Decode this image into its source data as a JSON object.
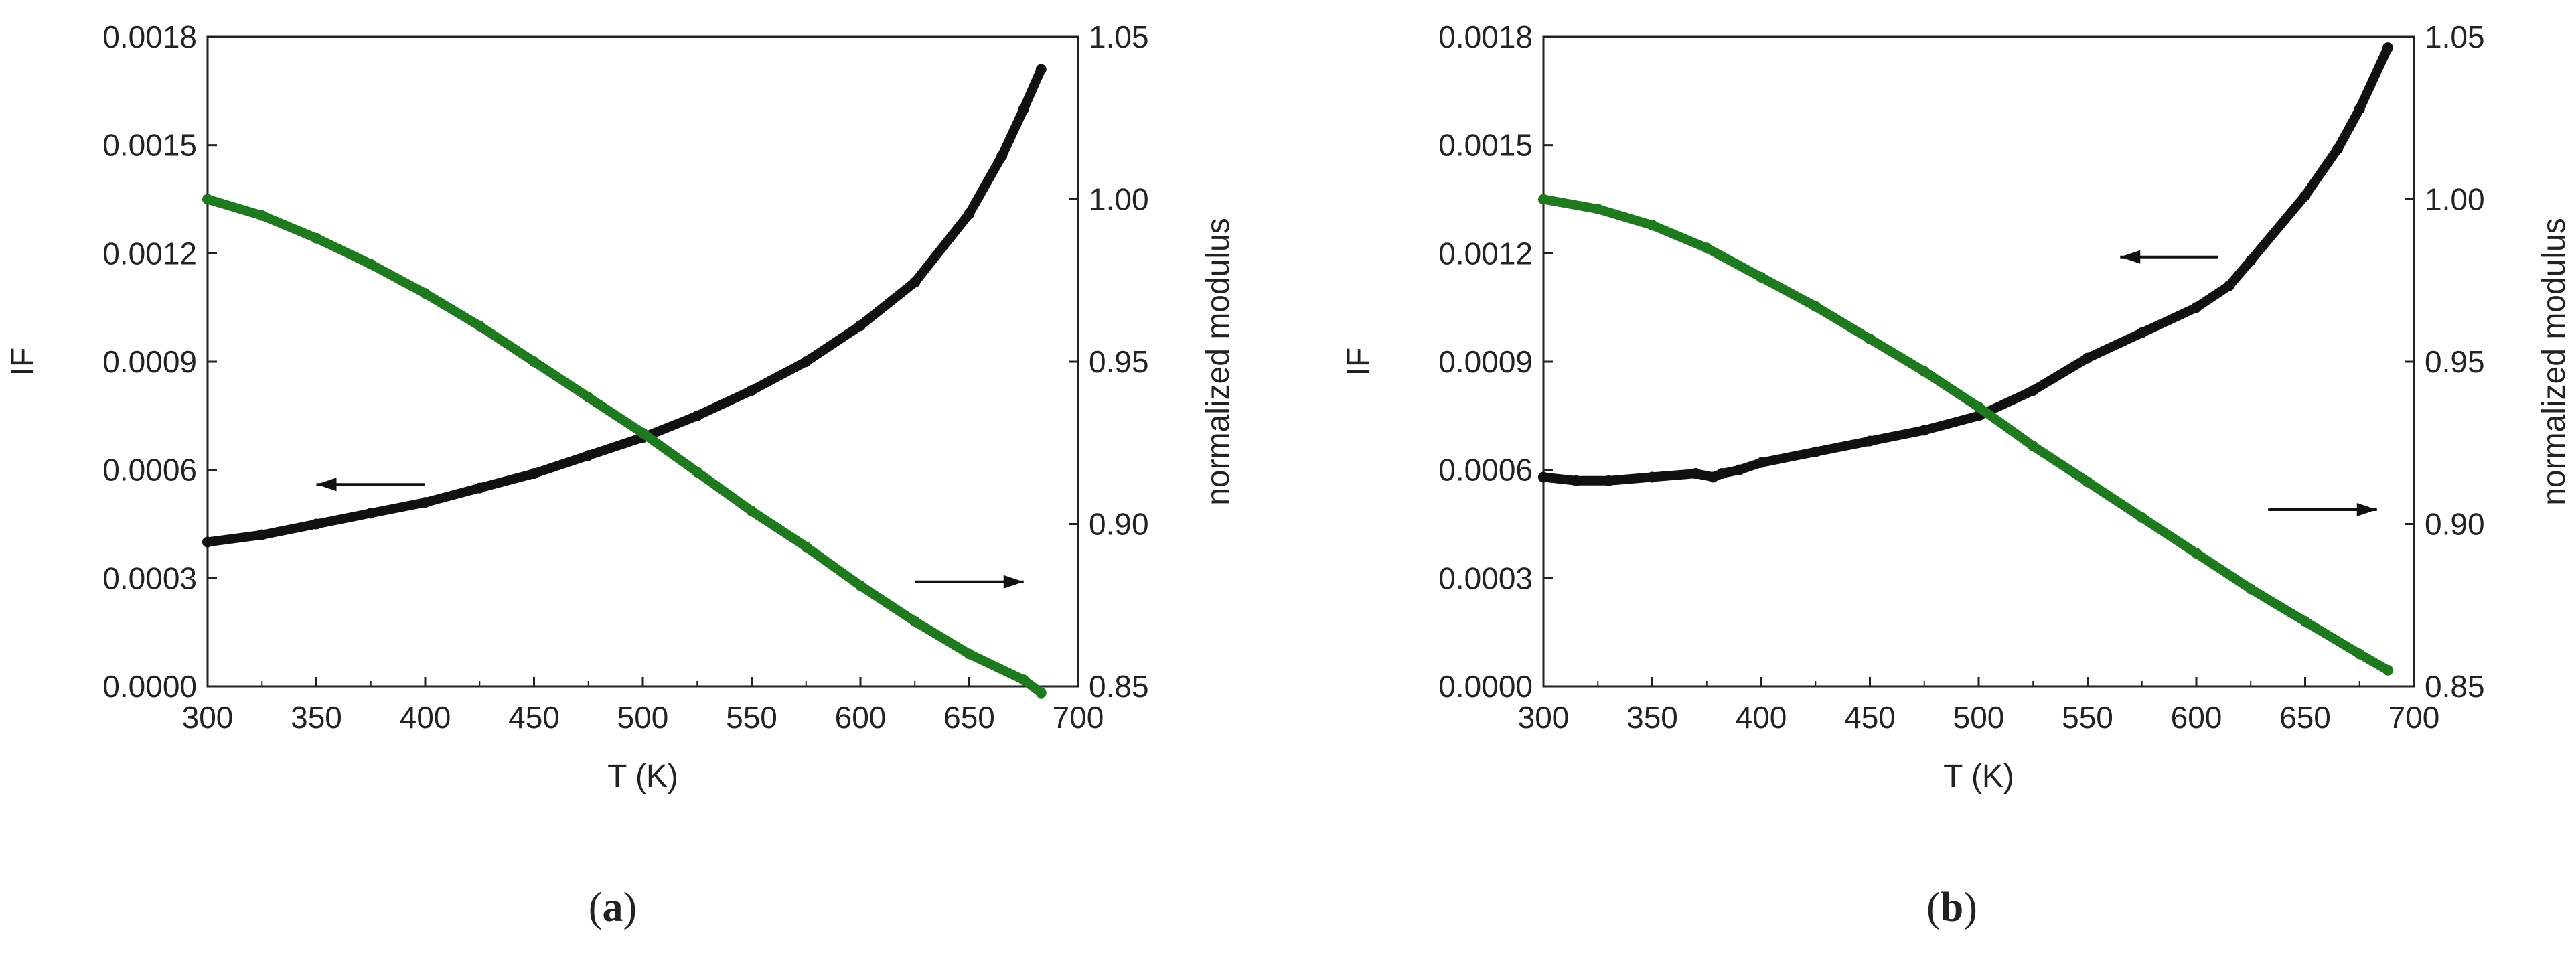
{
  "chart_data": [
    {
      "type": "line",
      "panel_label": "a",
      "caption_open": "(",
      "caption_close": ")",
      "xlabel": "T (K)",
      "ylabel": "IF",
      "y2label": "normalized modulus",
      "xlim": [
        300,
        700
      ],
      "ylim": [
        0,
        0.0018
      ],
      "y2lim": [
        0.85,
        1.05
      ],
      "xticks": [
        "300",
        "350",
        "400",
        "450",
        "500",
        "550",
        "600",
        "650",
        "700"
      ],
      "yticks": [
        "0.0000",
        "0.0003",
        "0.0006",
        "0.0009",
        "0.0012",
        "0.0015",
        "0.0018"
      ],
      "y2ticks": [
        "0.85",
        "0.90",
        "0.95",
        "1.00",
        "1.05"
      ],
      "series": [
        {
          "name": "IF",
          "axis": "left",
          "color": "#111111",
          "x": [
            300,
            325,
            350,
            375,
            400,
            425,
            450,
            475,
            500,
            525,
            550,
            575,
            600,
            625,
            650,
            665,
            675,
            683
          ],
          "y": [
            0.0004,
            0.00042,
            0.00045,
            0.00048,
            0.00051,
            0.00055,
            0.00059,
            0.00064,
            0.00069,
            0.00075,
            0.00082,
            0.0009,
            0.001,
            0.00112,
            0.00131,
            0.00147,
            0.0016,
            0.00171
          ]
        },
        {
          "name": "normalized modulus",
          "axis": "right",
          "color": "#1f7a1f",
          "x": [
            300,
            325,
            350,
            375,
            400,
            425,
            450,
            475,
            500,
            525,
            550,
            575,
            600,
            625,
            650,
            675,
            683
          ],
          "y": [
            1.0,
            0.995,
            0.988,
            0.98,
            0.971,
            0.961,
            0.95,
            0.939,
            0.928,
            0.916,
            0.904,
            0.893,
            0.881,
            0.87,
            0.86,
            0.852,
            0.848
          ]
        }
      ],
      "annotations": [
        {
          "type": "arrow",
          "direction": "left",
          "target": "IF",
          "x0": 400,
          "x1": 350,
          "y": 0.00056
        },
        {
          "type": "arrow",
          "direction": "right",
          "target": "normalized modulus",
          "x0": 625,
          "x1": 675,
          "y": 0.00029
        }
      ]
    },
    {
      "type": "line",
      "panel_label": "b",
      "caption_open": "(",
      "caption_close": ")",
      "xlabel": "T (K)",
      "ylabel": "IF",
      "y2label": "normalized modulus",
      "xlim": [
        300,
        700
      ],
      "ylim": [
        0,
        0.0018
      ],
      "y2lim": [
        0.85,
        1.05
      ],
      "xticks": [
        "300",
        "350",
        "400",
        "450",
        "500",
        "550",
        "600",
        "650",
        "700"
      ],
      "yticks": [
        "0.0000",
        "0.0003",
        "0.0006",
        "0.0009",
        "0.0012",
        "0.0015",
        "0.0018"
      ],
      "y2ticks": [
        "0.85",
        "0.90",
        "0.95",
        "1.00",
        "1.05"
      ],
      "series": [
        {
          "name": "IF",
          "axis": "left",
          "color": "#111111",
          "x": [
            300,
            315,
            330,
            350,
            370,
            378,
            382,
            390,
            400,
            425,
            450,
            475,
            500,
            525,
            550,
            575,
            600,
            615,
            625,
            650,
            665,
            675,
            688
          ],
          "y": [
            0.00058,
            0.00057,
            0.00057,
            0.00058,
            0.00059,
            0.00058,
            0.00059,
            0.0006,
            0.00062,
            0.00065,
            0.00068,
            0.00071,
            0.00075,
            0.00082,
            0.00091,
            0.00098,
            0.00105,
            0.00111,
            0.00118,
            0.00136,
            0.00149,
            0.0016,
            0.00177
          ]
        },
        {
          "name": "normalized modulus",
          "axis": "right",
          "color": "#1f7a1f",
          "x": [
            300,
            325,
            350,
            375,
            400,
            425,
            450,
            475,
            500,
            525,
            550,
            575,
            600,
            625,
            650,
            675,
            688
          ],
          "y": [
            1.0,
            0.997,
            0.992,
            0.985,
            0.976,
            0.967,
            0.957,
            0.947,
            0.936,
            0.924,
            0.913,
            0.902,
            0.891,
            0.88,
            0.87,
            0.86,
            0.855
          ]
        }
      ],
      "annotations": [
        {
          "type": "arrow",
          "direction": "left",
          "target": "IF",
          "x0": 610,
          "x1": 565,
          "y": 0.00119
        },
        {
          "type": "arrow",
          "direction": "right",
          "target": "normalized modulus",
          "x0": 633,
          "x1": 683,
          "y": 0.00049
        }
      ]
    }
  ]
}
